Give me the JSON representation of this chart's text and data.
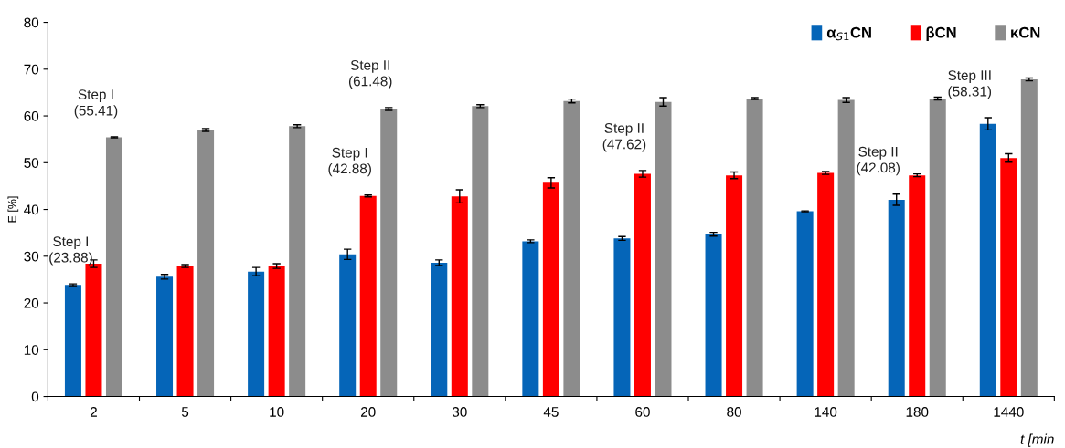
{
  "chart_data": {
    "type": "bar",
    "categories": [
      "2",
      "5",
      "10",
      "20",
      "30",
      "45",
      "60",
      "80",
      "140",
      "180",
      "1440"
    ],
    "series": [
      {
        "name": "α$_{S1}$CN",
        "color": "#0565b8",
        "values": [
          23.88,
          25.6,
          26.7,
          30.4,
          28.6,
          33.2,
          33.8,
          34.7,
          39.6,
          42.08,
          58.31
        ],
        "errors": [
          0.2,
          0.5,
          0.9,
          1.1,
          0.6,
          0.3,
          0.4,
          0.4,
          0.1,
          1.2,
          1.3
        ]
      },
      {
        "name": "βCN",
        "color": "#ff0000",
        "values": [
          28.4,
          27.9,
          27.9,
          42.88,
          42.8,
          45.7,
          47.62,
          47.3,
          47.8,
          47.3,
          51.0
        ],
        "errors": [
          0.8,
          0.3,
          0.5,
          0.2,
          1.4,
          1.1,
          0.7,
          0.7,
          0.3,
          0.3,
          0.9
        ]
      },
      {
        "name": "κCN",
        "color": "#8c8c8c",
        "values": [
          55.41,
          57.0,
          57.8,
          61.48,
          62.1,
          63.2,
          63.0,
          63.7,
          63.4,
          63.7,
          67.8
        ],
        "errors": [
          0.1,
          0.3,
          0.3,
          0.3,
          0.3,
          0.4,
          0.9,
          0.2,
          0.5,
          0.3,
          0.3
        ]
      }
    ],
    "ylabel": "E [%]",
    "xlabel": "t [min",
    "ylim": [
      0,
      80
    ],
    "yticks": [
      0,
      10,
      20,
      30,
      40,
      50,
      60,
      70,
      80
    ],
    "legend": "top right",
    "grid": false,
    "annotations": [
      "Step I\n(23.88)",
      "Step I\n(55.41)",
      "Step I\n(42.88)",
      "Step II\n(61.48)",
      "Step II\n(47.62)",
      "Step II\n(42.08)",
      "Step III\n(58.31)"
    ]
  }
}
